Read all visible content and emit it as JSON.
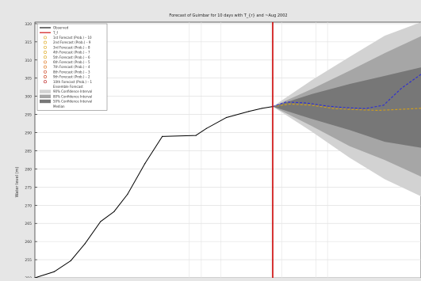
{
  "window": {
    "background": "#e6e6e6"
  },
  "chart_data": {
    "type": "line",
    "title": "Forecast of Guimbar for 10 days with T_{r} and ~Aug 2002",
    "xlabel": "",
    "ylabel": "Water level (m)",
    "ylim": [
      0,
      100
    ],
    "xlim": [
      0,
      100
    ],
    "grid": true,
    "legend_placement": "top-left",
    "colors": {
      "observed": "#000000",
      "forecast_start": "#cc0000",
      "band_outer": "#d2d2d2",
      "band_middle": "#a6a6a6",
      "band_inner": "#777777",
      "forecast_mean": "#d4a017",
      "forecast_member": "#2b2bd6"
    },
    "y_ticks": [
      {
        "label": "250",
        "value": 0
      },
      {
        "label": "255",
        "value": 7.1
      },
      {
        "label": "260",
        "value": 14.2
      },
      {
        "label": "265",
        "value": 21.3
      },
      {
        "label": "270",
        "value": 28.4
      },
      {
        "label": "275",
        "value": 35.5
      },
      {
        "label": "280",
        "value": 42.6
      },
      {
        "label": "285",
        "value": 49.7
      },
      {
        "label": "290",
        "value": 56.8
      },
      {
        "label": "295",
        "value": 63.9
      },
      {
        "label": "300",
        "value": 71.0
      },
      {
        "label": "305",
        "value": 78.1
      },
      {
        "label": "310",
        "value": 85.2
      },
      {
        "label": "315",
        "value": 92.3
      },
      {
        "label": "320",
        "value": 99.4
      }
    ],
    "x_grid": [
      40.0,
      43.1,
      48.2,
      61.2,
      63.9,
      72.8,
      75.8
    ],
    "forecast_start_x": 61.6,
    "series": [
      {
        "key": "observed",
        "x": [
          0,
          5,
          9.3,
          13,
          17,
          20.5,
          24,
          28.5,
          33,
          41.7,
          44.4,
          49.6,
          55.4,
          58.8,
          61.6
        ],
        "values": [
          0,
          2.4,
          6.7,
          13.4,
          22.0,
          25.9,
          32.7,
          44.7,
          55.3,
          55.7,
          58.4,
          62.7,
          65.1,
          66.3,
          67.0
        ]
      },
      {
        "key": "forecast_mean",
        "x": [
          61.6,
          66.1,
          71.8,
          77.5,
          83.2,
          88.9,
          94.6,
          100
        ],
        "values": [
          67.0,
          68.0,
          67.5,
          66.2,
          65.8,
          65.5,
          65.9,
          66.3
        ]
      },
      {
        "key": "forecast_member",
        "x": [
          61.6,
          65.1,
          70.3,
          75.6,
          80.1,
          85.5,
          90.3,
          94.9,
          100
        ],
        "values": [
          67.0,
          68.8,
          68.4,
          67.2,
          66.6,
          66.2,
          67.5,
          74.1,
          79.6
        ]
      }
    ],
    "bands": [
      {
        "key": "band_outer",
        "x": [
          61.6,
          71.8,
          81.5,
          90.6,
          100
        ],
        "upper": [
          67.0,
          77.4,
          86.4,
          94.7,
          100
        ],
        "lower": [
          67.0,
          57.1,
          47.0,
          38.6,
          31.9
        ]
      },
      {
        "key": "band_middle",
        "x": [
          61.6,
          71.8,
          81.5,
          90.6,
          100
        ],
        "upper": [
          67.0,
          73.9,
          81.0,
          87.9,
          94.5
        ],
        "lower": [
          67.0,
          59.3,
          51.5,
          46.1,
          39.6
        ]
      },
      {
        "key": "band_inner",
        "x": [
          61.6,
          71.8,
          81.5,
          90.6,
          100
        ],
        "upper": [
          67.0,
          71.9,
          75.8,
          79.0,
          82.3
        ],
        "lower": [
          67.0,
          62.1,
          57.8,
          53.2,
          50.9
        ]
      }
    ],
    "legend": [
      {
        "key": "observed",
        "label": "Observed",
        "symbol": "line",
        "color": "#000000"
      },
      {
        "key": "forecast_start",
        "label": "T_f",
        "symbol": "line",
        "color": "#cc0000"
      },
      {
        "key": "m1",
        "label": "1st Forecast (Prob.) – 10",
        "symbol": "circle",
        "color": "#e0b030"
      },
      {
        "key": "m2",
        "label": "2nd Forecast (Prob.) – 9",
        "symbol": "circle",
        "color": "#e0b030"
      },
      {
        "key": "m3",
        "label": "3rd Forecast (Prob.) – 8",
        "symbol": "circle",
        "color": "#e0b030"
      },
      {
        "key": "m4",
        "label": "4th Forecast (Prob.) – 7",
        "symbol": "circle",
        "color": "#e0b030"
      },
      {
        "key": "m5",
        "label": "5th Forecast (Prob.) – 6",
        "symbol": "circle",
        "color": "#e0b030"
      },
      {
        "key": "m6",
        "label": "6th Forecast (Prob.) – 5",
        "symbol": "circle",
        "color": "#e08030"
      },
      {
        "key": "m7",
        "label": "7th Forecast (Prob.) – 4",
        "symbol": "circle",
        "color": "#e08030"
      },
      {
        "key": "m8",
        "label": "8th Forecast (Prob.) – 3",
        "symbol": "circle",
        "color": "#d05030"
      },
      {
        "key": "m9",
        "label": "9th Forecast (Prob.) – 2",
        "symbol": "circle",
        "color": "#d05030"
      },
      {
        "key": "m10",
        "label": "10th Forecast (Prob.) – 1",
        "symbol": "circle",
        "color": "#c03030"
      },
      {
        "key": "ens",
        "label": "Ensemble Forecast",
        "symbol": "none",
        "color": "#444444"
      },
      {
        "key": "band_outer",
        "label": "90% Confidence Interval",
        "symbol": "patch",
        "color": "#d2d2d2"
      },
      {
        "key": "band_middle",
        "label": "80% Confidence Interval",
        "symbol": "patch",
        "color": "#a6a6a6"
      },
      {
        "key": "band_inner",
        "label": "50% Confidence Interval",
        "symbol": "patch",
        "color": "#777777"
      },
      {
        "key": "median",
        "label": "Median",
        "symbol": "none",
        "color": "#444444"
      }
    ]
  }
}
